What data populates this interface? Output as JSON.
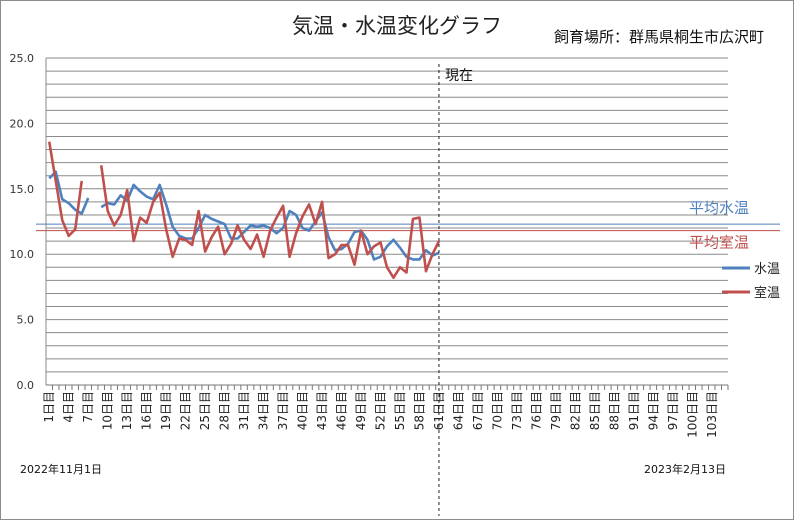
{
  "chart_data": {
    "type": "line",
    "title": "気温・水温変化グラフ",
    "subtitle": "飼育場所：群馬県桐生市広沢町",
    "ylim": [
      0,
      25
    ],
    "yticks": [
      "0.0",
      "5.0",
      "10.0",
      "15.0",
      "20.0",
      "25.0"
    ],
    "grid": true,
    "legend_position": "right",
    "x_count": 105,
    "x_labels": [
      {
        "index": 1,
        "label": "1日目"
      },
      {
        "index": 4,
        "label": "4日目"
      },
      {
        "index": 7,
        "label": "7日目"
      },
      {
        "index": 10,
        "label": "10日目"
      },
      {
        "index": 13,
        "label": "13日目"
      },
      {
        "index": 16,
        "label": "16日目"
      },
      {
        "index": 19,
        "label": "19日目"
      },
      {
        "index": 22,
        "label": "22日目"
      },
      {
        "index": 25,
        "label": "25日目"
      },
      {
        "index": 28,
        "label": "28日目"
      },
      {
        "index": 31,
        "label": "31日目"
      },
      {
        "index": 34,
        "label": "34日目"
      },
      {
        "index": 37,
        "label": "37日目"
      },
      {
        "index": 40,
        "label": "40日目"
      },
      {
        "index": 43,
        "label": "43日目"
      },
      {
        "index": 46,
        "label": "46日目"
      },
      {
        "index": 49,
        "label": "49日目"
      },
      {
        "index": 52,
        "label": "52日目"
      },
      {
        "index": 55,
        "label": "55日目"
      },
      {
        "index": 58,
        "label": "58日目"
      },
      {
        "index": 61,
        "label": "61日目"
      },
      {
        "index": 64,
        "label": "64日目"
      },
      {
        "index": 67,
        "label": "67日目"
      },
      {
        "index": 70,
        "label": "70日目"
      },
      {
        "index": 73,
        "label": "73日目"
      },
      {
        "index": 76,
        "label": "76日目"
      },
      {
        "index": 79,
        "label": "79日目"
      },
      {
        "index": 82,
        "label": "82日目"
      },
      {
        "index": 85,
        "label": "85日目"
      },
      {
        "index": 88,
        "label": "88日目"
      },
      {
        "index": 91,
        "label": "91日目"
      },
      {
        "index": 94,
        "label": "94日目"
      },
      {
        "index": 97,
        "label": "97日目"
      },
      {
        "index": 100,
        "label": "100日目"
      },
      {
        "index": 103,
        "label": "103日目"
      }
    ],
    "date_label_start": "2022年11月1日",
    "date_label_end": "2023年2月13日",
    "now_index": 60.5,
    "now_label": "現在",
    "series": [
      {
        "name": "水温",
        "color": "#4f81bd",
        "values": [
          15.8,
          16.3,
          14.2,
          13.9,
          13.4,
          13.1,
          14.3,
          null,
          13.6,
          13.9,
          13.8,
          14.5,
          14.1,
          15.3,
          14.8,
          14.4,
          14.2,
          15.3,
          13.8,
          12.1,
          11.4,
          11.2,
          11.2,
          12.0,
          13.0,
          12.7,
          12.5,
          12.3,
          11.2,
          11.2,
          11.7,
          12.2,
          12.1,
          12.2,
          12.0,
          11.6,
          12.0,
          13.3,
          13.0,
          12.0,
          11.8,
          12.5,
          13.2,
          11.3,
          10.3,
          10.4,
          10.8,
          11.7,
          11.8,
          11.1,
          9.6,
          9.8,
          10.6,
          11.1,
          10.5,
          9.8,
          9.6,
          9.6,
          10.3,
          9.9,
          10.1
        ]
      },
      {
        "name": "室温",
        "color": "#c0504d",
        "values": [
          18.6,
          15.6,
          12.6,
          11.4,
          11.9,
          15.6,
          null,
          null,
          16.8,
          13.3,
          12.2,
          13.0,
          14.9,
          11.0,
          12.8,
          12.4,
          14.0,
          14.7,
          11.9,
          9.8,
          11.2,
          11.1,
          10.7,
          13.3,
          10.2,
          11.3,
          12.1,
          10.0,
          10.8,
          12.2,
          11.1,
          10.4,
          11.5,
          9.8,
          11.8,
          12.8,
          13.7,
          9.8,
          11.6,
          12.9,
          13.8,
          12.3,
          14.0,
          9.7,
          10.0,
          10.7,
          10.7,
          9.2,
          11.8,
          10.0,
          10.6,
          10.9,
          9.0,
          8.2,
          9.0,
          8.6,
          12.7,
          12.8,
          8.7,
          10.0,
          11.0
        ]
      }
    ],
    "averages": [
      {
        "label": "平均水温",
        "value": 12.3,
        "color": "#4f81bd"
      },
      {
        "label": "平均室温",
        "value": 11.8,
        "color": "#c0504d"
      }
    ]
  }
}
